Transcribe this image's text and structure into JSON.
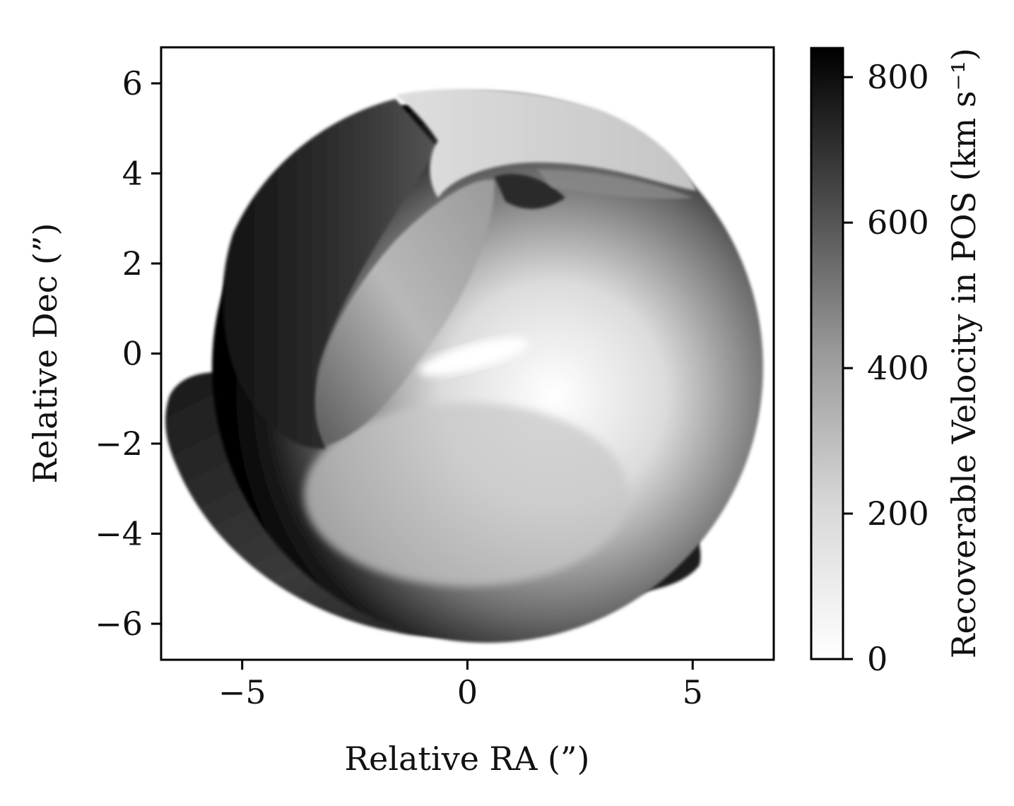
{
  "chart_data": {
    "type": "heatmap",
    "title": "",
    "xlabel": "Relative RA (”)",
    "ylabel": "Relative Dec (”)",
    "xlim": [
      -6.8,
      6.8
    ],
    "ylim": [
      -6.8,
      6.8
    ],
    "x_ticks": [
      {
        "value": -5,
        "label": "−5"
      },
      {
        "value": 0,
        "label": "0"
      },
      {
        "value": 5,
        "label": "5"
      }
    ],
    "y_ticks": [
      {
        "value": -6,
        "label": "−6"
      },
      {
        "value": -4,
        "label": "−4"
      },
      {
        "value": -2,
        "label": "−2"
      },
      {
        "value": 0,
        "label": "0"
      },
      {
        "value": 2,
        "label": "2"
      },
      {
        "value": 4,
        "label": "4"
      },
      {
        "value": 6,
        "label": "6"
      }
    ],
    "colormap": "gray_r",
    "colorbar": {
      "label": "Recoverable Velocity in POS (km s⁻¹)",
      "range": [
        0,
        840
      ],
      "ticks": [
        {
          "value": 0,
          "label": "0"
        },
        {
          "value": 200,
          "label": "200"
        },
        {
          "value": 400,
          "label": "400"
        },
        {
          "value": 600,
          "label": "600"
        },
        {
          "value": 800,
          "label": "800"
        }
      ],
      "colors": {
        "low": "#ffffff",
        "high": "#000000"
      }
    },
    "grid": false
  }
}
